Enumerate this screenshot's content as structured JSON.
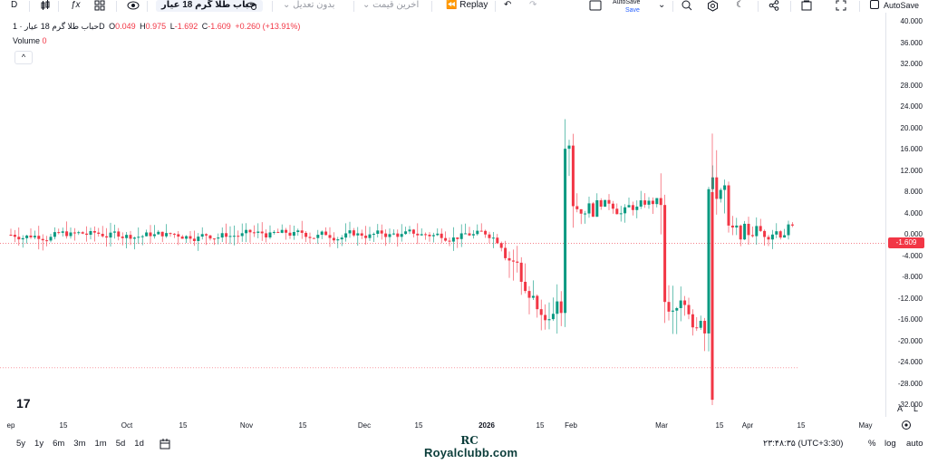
{
  "toolbar": {
    "interval": "D",
    "symbol": "حباب طلا گرم 18 عیار",
    "adjustment": "بدون تعدیل",
    "price_type": "آخرین قیمت",
    "replay": "Replay",
    "autosave_title": "AutoSave",
    "autosave_sub": "Save",
    "autosave_toggle": "AutoSave"
  },
  "legend": {
    "title": "حباب طلا گرم 18 عیار · 1D",
    "o_label": "O",
    "o": "0.049",
    "h_label": "H",
    "h": "0.975",
    "l_label": "L",
    "l": "-1.692",
    "c_label": "C",
    "c": "-1.609",
    "change": "+0.260 (+13.91%)",
    "volume_label": "Volume",
    "volume": "0",
    "collapse": "^"
  },
  "colors": {
    "up": "#089981",
    "down": "#f23645",
    "accent": "#2962ff"
  },
  "current_price": "-1.609",
  "chart_data": {
    "type": "candlestick",
    "y_ticks": [
      "40.000",
      "36.000",
      "32.000",
      "28.000",
      "24.000",
      "20.000",
      "16.000",
      "12.000",
      "8.000",
      "4.000",
      "0.000",
      "-4.000",
      "-8.000",
      "-12.000",
      "-16.000",
      "-20.000",
      "-24.000",
      "-28.000",
      "-32.000"
    ],
    "x_ticks": [
      "ep",
      "15",
      "Oct",
      "15",
      "Nov",
      "15",
      "Dec",
      "15",
      "2026",
      "15",
      "Feb",
      "Mar",
      "15",
      "Apr",
      "15",
      "May"
    ],
    "ylim": [
      -32,
      40
    ],
    "last_close": -1.609
  },
  "scale": {
    "a": "A",
    "l": "L"
  },
  "bottom": {
    "ranges": [
      "5y",
      "1y",
      "6m",
      "3m",
      "1m",
      "5d",
      "1d"
    ],
    "time": "۲۳:۴۸:۳۵ (UTC+3:30)",
    "percent": "%",
    "log": "log",
    "auto": "auto"
  },
  "watermark": {
    "logo": "RC",
    "text": "Royalclubb.com"
  },
  "tv_logo": "17"
}
